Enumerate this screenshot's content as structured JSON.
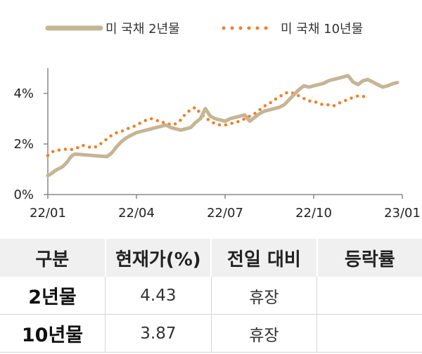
{
  "chart_data": {
    "type": "line",
    "series": [
      {
        "name": "미 국채 2년물",
        "color": "#c5b595",
        "style": "solid",
        "points": [
          [
            "22/01",
            0.75
          ],
          [
            "22/01",
            0.8
          ],
          [
            "22/01",
            0.87
          ],
          [
            "22/01",
            0.95
          ],
          [
            "22/01",
            1.0
          ],
          [
            "22/01",
            1.05
          ],
          [
            "22/01",
            1.1
          ],
          [
            "22/01",
            1.2
          ],
          [
            "22/01",
            1.3
          ],
          [
            "22/01",
            1.45
          ],
          [
            "22/01",
            1.55
          ],
          [
            "22/01",
            1.6
          ],
          [
            "22/03",
            1.5
          ],
          [
            "22/03",
            1.65
          ],
          [
            "22/03",
            1.9
          ],
          [
            "22/03",
            2.1
          ],
          [
            "22/03",
            2.25
          ],
          [
            "22/03",
            2.35
          ],
          [
            "22/04",
            2.45
          ],
          [
            "22/04",
            2.5
          ],
          [
            "22/04",
            2.55
          ],
          [
            "22/04",
            2.6
          ],
          [
            "22/04",
            2.65
          ],
          [
            "22/04",
            2.7
          ],
          [
            "22/05",
            2.75
          ],
          [
            "22/05",
            2.65
          ],
          [
            "22/05",
            2.6
          ],
          [
            "22/05",
            2.55
          ],
          [
            "22/05",
            2.6
          ],
          [
            "22/05",
            2.65
          ],
          [
            "22/06",
            2.85
          ],
          [
            "22/06",
            3.0
          ],
          [
            "22/06",
            3.4
          ],
          [
            "22/06",
            3.1
          ],
          [
            "22/06",
            3.0
          ],
          [
            "22/06",
            2.95
          ],
          [
            "22/07",
            2.9
          ],
          [
            "22/07",
            3.0
          ],
          [
            "22/07",
            3.05
          ],
          [
            "22/07",
            3.1
          ],
          [
            "22/07",
            3.15
          ],
          [
            "22/07",
            2.9
          ],
          [
            "22/08",
            3.05
          ],
          [
            "22/08",
            3.2
          ],
          [
            "22/08",
            3.3
          ],
          [
            "22/08",
            3.35
          ],
          [
            "22/08",
            3.4
          ],
          [
            "22/08",
            3.45
          ],
          [
            "22/09",
            3.55
          ],
          [
            "22/09",
            3.75
          ],
          [
            "22/09",
            3.95
          ],
          [
            "22/09",
            4.15
          ],
          [
            "22/09",
            4.3
          ],
          [
            "22/09",
            4.25
          ],
          [
            "22/10",
            4.3
          ],
          [
            "22/10",
            4.35
          ],
          [
            "22/10",
            4.4
          ],
          [
            "22/10",
            4.5
          ],
          [
            "22/10",
            4.55
          ],
          [
            "22/10",
            4.6
          ],
          [
            "22/11",
            4.65
          ],
          [
            "22/11",
            4.7
          ],
          [
            "22/11",
            4.45
          ],
          [
            "22/11",
            4.35
          ],
          [
            "22/11",
            4.5
          ],
          [
            "22/11",
            4.55
          ],
          [
            "22/12",
            4.45
          ],
          [
            "22/12",
            4.35
          ],
          [
            "22/12",
            4.25
          ],
          [
            "22/12",
            4.3
          ],
          [
            "22/12",
            4.38
          ],
          [
            "22/12",
            4.43
          ]
        ]
      },
      {
        "name": "미 국채 10년물",
        "color": "#f07f2b",
        "style": "dotted",
        "points": [
          [
            "22/01",
            1.55
          ],
          [
            "22/01",
            1.7
          ],
          [
            "22/01",
            1.75
          ],
          [
            "22/01",
            1.78
          ],
          [
            "22/01",
            1.8
          ],
          [
            "22/01",
            1.78
          ],
          [
            "22/02",
            1.85
          ],
          [
            "22/02",
            1.95
          ],
          [
            "22/02",
            1.9
          ],
          [
            "22/02",
            1.85
          ],
          [
            "22/02",
            1.9
          ],
          [
            "22/02",
            2.05
          ],
          [
            "22/03",
            2.2
          ],
          [
            "22/03",
            2.35
          ],
          [
            "22/03",
            2.45
          ],
          [
            "22/03",
            2.5
          ],
          [
            "22/03",
            2.6
          ],
          [
            "22/03",
            2.65
          ],
          [
            "22/04",
            2.75
          ],
          [
            "22/04",
            2.85
          ],
          [
            "22/04",
            2.95
          ],
          [
            "22/04",
            3.0
          ],
          [
            "22/04",
            2.95
          ],
          [
            "22/04",
            2.85
          ],
          [
            "22/05",
            2.85
          ],
          [
            "22/05",
            2.75
          ],
          [
            "22/05",
            2.8
          ],
          [
            "22/05",
            2.95
          ],
          [
            "22/05",
            3.2
          ],
          [
            "22/05",
            3.35
          ],
          [
            "22/06",
            3.45
          ],
          [
            "22/06",
            3.2
          ],
          [
            "22/06",
            3.05
          ],
          [
            "22/06",
            2.9
          ],
          [
            "22/06",
            2.8
          ],
          [
            "22/06",
            2.75
          ],
          [
            "22/07",
            2.75
          ],
          [
            "22/07",
            2.8
          ],
          [
            "22/07",
            2.85
          ],
          [
            "22/07",
            2.9
          ],
          [
            "22/07",
            3.0
          ],
          [
            "22/07",
            3.1
          ],
          [
            "22/08",
            3.2
          ],
          [
            "22/08",
            3.35
          ],
          [
            "22/08",
            3.5
          ],
          [
            "22/08",
            3.6
          ],
          [
            "22/08",
            3.75
          ],
          [
            "22/08",
            3.85
          ],
          [
            "22/09",
            4.0
          ],
          [
            "22/09",
            4.05
          ],
          [
            "22/09",
            4.0
          ],
          [
            "22/09",
            3.9
          ],
          [
            "22/09",
            3.8
          ],
          [
            "22/09",
            3.7
          ],
          [
            "22/10",
            3.7
          ],
          [
            "22/10",
            3.6
          ],
          [
            "22/10",
            3.55
          ],
          [
            "22/10",
            3.55
          ],
          [
            "22/10",
            3.5
          ],
          [
            "22/10",
            3.6
          ],
          [
            "22/11",
            3.7
          ],
          [
            "22/11",
            3.75
          ],
          [
            "22/11",
            3.85
          ],
          [
            "22/11",
            3.9
          ],
          [
            "22/11",
            3.88
          ],
          [
            "22/11",
            3.87
          ]
        ]
      }
    ],
    "x_ticks": [
      "22/01",
      "22/04",
      "22/07",
      "22/10",
      "23/01"
    ],
    "y_ticks": [
      "0%",
      "2%",
      "4%"
    ],
    "ylim": [
      0,
      5
    ],
    "legend": "top"
  },
  "table": {
    "headers": [
      "구분",
      "현재가(%)",
      "전일 대비",
      "등락률"
    ],
    "rows": [
      {
        "label": "2년물",
        "price": "4.43",
        "change": "휴장",
        "rate": ""
      },
      {
        "label": "10년물",
        "price": "3.87",
        "change": "휴장",
        "rate": ""
      }
    ]
  }
}
